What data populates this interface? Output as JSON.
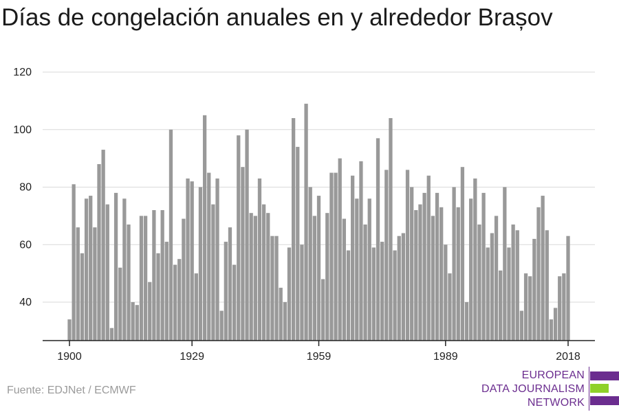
{
  "title": "Días de congelación anuales en y alrededor Brașov",
  "source": "Fuente: EDJNet / ECMWF",
  "logo": {
    "lines": [
      "EUROPEAN",
      "DATA JOURNALISM",
      "NETWORK"
    ],
    "colors": {
      "purple": "#6b2d8f",
      "green": "#8fd12a"
    }
  },
  "chart_data": {
    "type": "bar",
    "x_tick_labels": [
      "1900",
      "1929",
      "1959",
      "1989",
      "2018"
    ],
    "y_tick_labels": [
      "40",
      "60",
      "80",
      "100",
      "120"
    ],
    "ylim": [
      26,
      125
    ],
    "xlim": [
      1900,
      2018
    ],
    "grid": true,
    "bar_color": "#999999",
    "categories": [
      1900,
      1901,
      1902,
      1903,
      1904,
      1905,
      1906,
      1907,
      1908,
      1909,
      1910,
      1911,
      1912,
      1913,
      1914,
      1915,
      1916,
      1917,
      1918,
      1919,
      1920,
      1921,
      1922,
      1923,
      1924,
      1925,
      1926,
      1927,
      1928,
      1929,
      1930,
      1931,
      1932,
      1933,
      1934,
      1935,
      1936,
      1937,
      1938,
      1939,
      1940,
      1941,
      1942,
      1943,
      1944,
      1945,
      1946,
      1947,
      1948,
      1949,
      1950,
      1951,
      1952,
      1953,
      1954,
      1955,
      1956,
      1957,
      1958,
      1959,
      1960,
      1961,
      1962,
      1963,
      1964,
      1965,
      1966,
      1967,
      1968,
      1969,
      1970,
      1971,
      1972,
      1973,
      1974,
      1975,
      1976,
      1977,
      1978,
      1979,
      1980,
      1981,
      1982,
      1983,
      1984,
      1985,
      1986,
      1987,
      1988,
      1989,
      1990,
      1991,
      1992,
      1993,
      1994,
      1995,
      1996,
      1997,
      1998,
      1999,
      2000,
      2001,
      2002,
      2003,
      2004,
      2005,
      2006,
      2007,
      2008,
      2009,
      2010,
      2011,
      2012,
      2013,
      2014,
      2015,
      2016,
      2017,
      2018
    ],
    "values": [
      34,
      81,
      66,
      57,
      76,
      77,
      66,
      88,
      93,
      74,
      31,
      78,
      52,
      76,
      67,
      40,
      39,
      70,
      70,
      47,
      72,
      57,
      72,
      61,
      100,
      53,
      55,
      69,
      83,
      82,
      50,
      80,
      105,
      85,
      74,
      83,
      37,
      61,
      66,
      53,
      98,
      87,
      100,
      71,
      70,
      83,
      74,
      71,
      63,
      63,
      45,
      40,
      59,
      104,
      94,
      60,
      109,
      80,
      70,
      77,
      48,
      71,
      85,
      85,
      90,
      69,
      58,
      84,
      76,
      89,
      67,
      76,
      59,
      97,
      61,
      86,
      104,
      58,
      63,
      64,
      86,
      80,
      72,
      74,
      78,
      84,
      70,
      78,
      73,
      60,
      50,
      80,
      73,
      87,
      40,
      76,
      83,
      67,
      78,
      59,
      64,
      70,
      51,
      80,
      59,
      67,
      65,
      37,
      50,
      49,
      62,
      73,
      77,
      65,
      34,
      38,
      49,
      50,
      63
    ]
  }
}
